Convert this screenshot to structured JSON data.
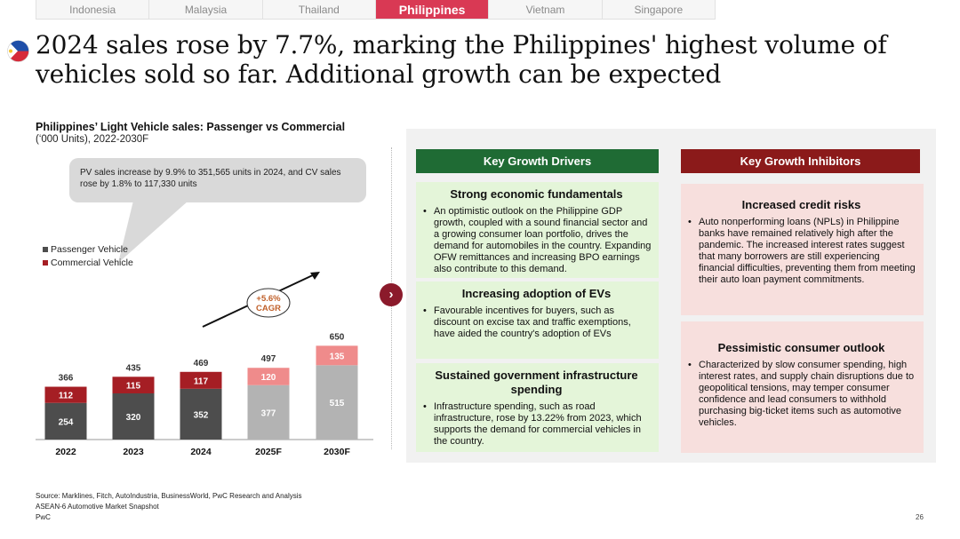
{
  "tabs": [
    {
      "label": "Indonesia",
      "active": false
    },
    {
      "label": "Malaysia",
      "active": false
    },
    {
      "label": "Thailand",
      "active": false
    },
    {
      "label": "Philippines",
      "active": true
    },
    {
      "label": "Vietnam",
      "active": false
    },
    {
      "label": "Singapore",
      "active": false
    }
  ],
  "title": "2024 sales rose by 7.7%, marking the Philippines' highest volume of vehicles sold so far. Additional growth can be expected",
  "chart": {
    "title": "Philippines’ Light Vehicle sales: Passenger vs Commercial",
    "subtitle": "(‘000 Units), 2022-2030F",
    "callout": "PV sales increase by 9.9% to 351,565 units in 2024, and CV sales rose by 1.8% to 117,330 units",
    "cagr_label": "+5.6%\nCAGR"
  },
  "chart_data": {
    "type": "bar",
    "stacked": true,
    "title": "Philippines’ Light Vehicle sales: Passenger vs Commercial",
    "subtitle": "(‘000 Units), 2022-2030F",
    "categories": [
      "2022",
      "2023",
      "2024",
      "2025F",
      "2030F"
    ],
    "series": [
      {
        "name": "Passenger Vehicle",
        "values": [
          254,
          320,
          352,
          377,
          515
        ],
        "color": "#4d4d4d",
        "forecast_color": "#b3b3b3"
      },
      {
        "name": "Commercial Vehicle",
        "values": [
          112,
          115,
          117,
          120,
          135
        ],
        "color": "#a51e24",
        "forecast_color": "#ef8b8b"
      }
    ],
    "totals": [
      366,
      435,
      469,
      497,
      650
    ],
    "forecast_from_index": 3,
    "legend_position": "top-left",
    "annotation": "+5.6% CAGR",
    "ylim": [
      0,
      650
    ]
  },
  "drivers": {
    "header": "Key Growth Drivers",
    "cards": [
      {
        "title": "Strong economic fundamentals",
        "text": "An optimistic outlook on the Philippine GDP growth, coupled with a sound financial sector and a growing consumer loan portfolio, drives the demand for automobiles in the country. Expanding OFW remittances and increasing BPO earnings also contribute to this demand."
      },
      {
        "title": "Increasing adoption of EVs",
        "text": "Favourable incentives for buyers, such as discount on excise tax and traffic exemptions, have aided the country's adoption of EVs"
      },
      {
        "title": "Sustained government infrastructure spending",
        "text": "Infrastructure spending, such as road infrastructure, rose by 13.22% from 2023, which supports the demand for commercial vehicles in the country."
      }
    ]
  },
  "inhibitors": {
    "header": "Key Growth Inhibitors",
    "cards": [
      {
        "title": "Increased credit risks",
        "text": "Auto nonperforming loans (NPLs) in Philippine banks have remained relatively high after the pandemic. The increased interest rates suggest that many borrowers are still experiencing financial difficulties, preventing them from meeting their auto loan payment commitments."
      },
      {
        "title": "Pessimistic consumer outlook",
        "text": "Characterized by slow consumer spending, high interest rates, and supply chain disruptions due to geopolitical tensions, may temper consumer confidence and lead consumers to withhold purchasing big-ticket items such as automotive vehicles."
      }
    ]
  },
  "footer": {
    "source": "Source: Marklines, Fitch, AutoIndustria, BusinessWorld, PwC Research and Analysis",
    "report": "ASEAN-6 Automotive Market Snapshot",
    "brand": "PwC",
    "page": "26"
  },
  "icons": {
    "flag": "philippines-flag-icon",
    "arrow": "chevron-right-icon"
  }
}
